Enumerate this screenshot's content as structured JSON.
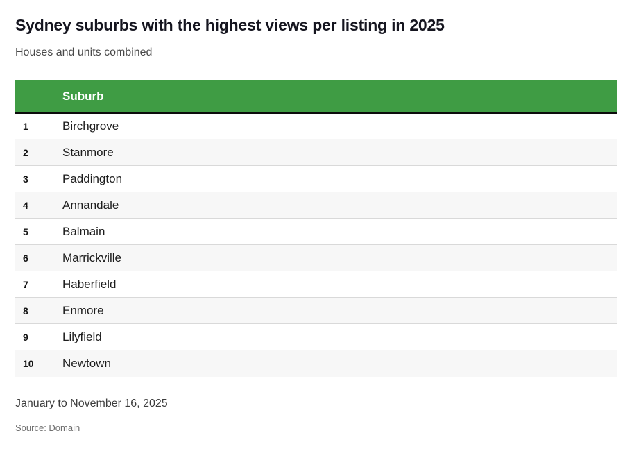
{
  "header": {
    "title": "Sydney suburbs with the highest views per listing in 2025",
    "subtitle": "Houses and units combined"
  },
  "table": {
    "rank_header": "",
    "suburb_header": "Suburb",
    "rows": [
      {
        "rank": "1",
        "suburb": "Birchgrove"
      },
      {
        "rank": "2",
        "suburb": "Stanmore"
      },
      {
        "rank": "3",
        "suburb": "Paddington"
      },
      {
        "rank": "4",
        "suburb": "Annandale"
      },
      {
        "rank": "5",
        "suburb": "Balmain"
      },
      {
        "rank": "6",
        "suburb": "Marrickville"
      },
      {
        "rank": "7",
        "suburb": "Haberfield"
      },
      {
        "rank": "8",
        "suburb": "Enmore"
      },
      {
        "rank": "9",
        "suburb": "Lilyfield"
      },
      {
        "rank": "10",
        "suburb": "Newtown"
      }
    ]
  },
  "footer": {
    "date_note": "January to November 16, 2025",
    "source": "Source: Domain"
  },
  "colors": {
    "header_bg": "#3f9c44",
    "header_text": "#ffffff",
    "header_border": "#0c0c0c",
    "row_alt_bg": "#f7f7f7",
    "row_divider": "#d9d9d9",
    "title_text": "#15151f",
    "subtitle_text": "#494949",
    "body_text": "#1d1d1d",
    "source_text": "#6f6f6f"
  },
  "chart_data": {
    "type": "table",
    "title": "Sydney suburbs with the highest views per listing in 2025",
    "subtitle": "Houses and units combined",
    "columns": [
      "",
      "Suburb"
    ],
    "rows": [
      [
        1,
        "Birchgrove"
      ],
      [
        2,
        "Stanmore"
      ],
      [
        3,
        "Paddington"
      ],
      [
        4,
        "Annandale"
      ],
      [
        5,
        "Balmain"
      ],
      [
        6,
        "Marrickville"
      ],
      [
        7,
        "Haberfield"
      ],
      [
        8,
        "Enmore"
      ],
      [
        9,
        "Lilyfield"
      ],
      [
        10,
        "Newtown"
      ]
    ],
    "notes": "January to November 16, 2025",
    "source": "Domain",
    "layout": {
      "header_background": "#3f9c44",
      "alternating_rows": true,
      "legend": "none",
      "grid": "row-dividers"
    }
  }
}
